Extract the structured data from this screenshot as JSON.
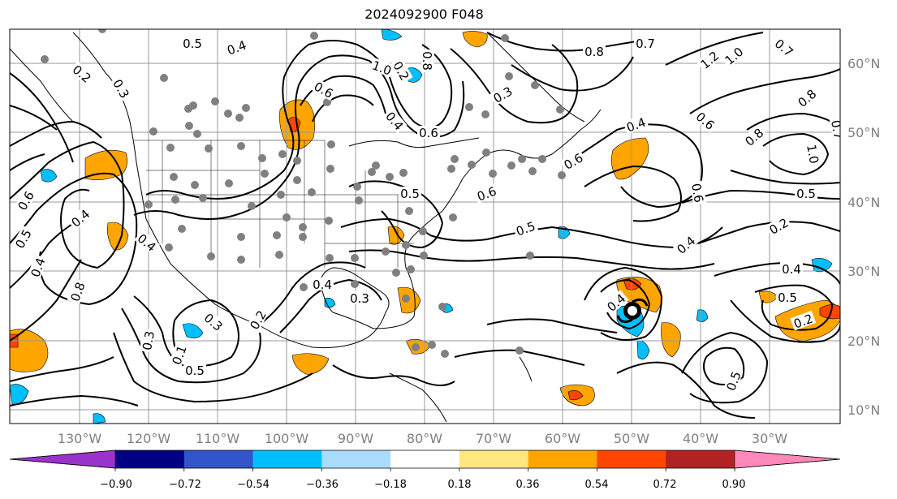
{
  "title": "2024092900 F048",
  "map": {
    "lon_labels": [
      "130°W",
      "120°W",
      "110°W",
      "100°W",
      "90°W",
      "80°W",
      "70°W",
      "60°W",
      "50°W",
      "40°W",
      "30°W"
    ],
    "lat_labels": [
      "10°N",
      "20°N",
      "30°N",
      "40°N",
      "50°N",
      "60°N"
    ],
    "contour_labels": [
      "0.5",
      "0.4",
      "0.2",
      "0.3",
      "0.2",
      "0.6",
      "0.4",
      "0.2",
      "0.8",
      "1.0",
      "0.6",
      "0.3",
      "0.8",
      "0.7",
      "1.2",
      "1.0",
      "0.7",
      "0.8",
      "0.6",
      "0.4",
      "0.6",
      "0.8",
      "1.0",
      "0.7",
      "0.6",
      "0.5",
      "0.5",
      "0.6",
      "0.5",
      "0.4",
      "0.2",
      "0.4",
      "0.5",
      "0.2",
      "0.4",
      "0.3",
      "0.4",
      "0.2",
      "0.3",
      "0.5",
      "0.8",
      "0.4",
      "0.6",
      "0.4",
      "0.3",
      "0.1",
      "0.5",
      "0.4",
      "0.5"
    ],
    "storm_symbol": "hurricane-icon"
  },
  "colorbar": {
    "colors": [
      "#9933cc",
      "#000080",
      "#3355cc",
      "#00bfff",
      "#aadcff",
      "#ffffff",
      "#ffe680",
      "#ffa500",
      "#ff4500",
      "#b22222",
      "#ff88bb"
    ],
    "ticks": [
      "−0.90",
      "−0.72",
      "−0.54",
      "−0.36",
      "−0.18",
      "0.18",
      "0.36",
      "0.54",
      "0.72",
      "0.90"
    ]
  }
}
